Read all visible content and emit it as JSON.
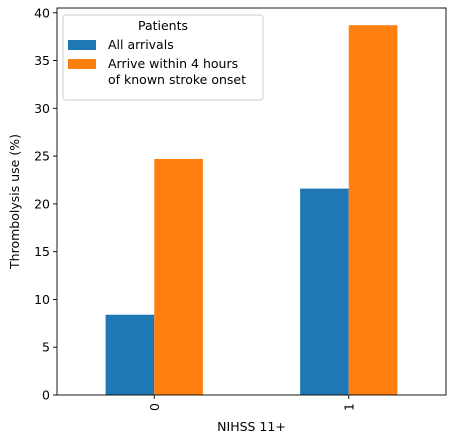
{
  "chart_data": {
    "type": "bar",
    "categories": [
      "0",
      "1"
    ],
    "series": [
      {
        "name": "All arrivals",
        "values": [
          8.4,
          21.6
        ],
        "color": "#1f77b4"
      },
      {
        "name": "Arrive within 4 hours\nof known stroke onset",
        "values": [
          24.7,
          38.7
        ],
        "color": "#ff7f0e"
      }
    ],
    "xlabel": "NIHSS 11+",
    "ylabel": "Thrombolysis use (%)",
    "ylim": [
      0,
      40.5
    ],
    "yticks": [
      0,
      5,
      10,
      15,
      20,
      25,
      30,
      35,
      40
    ],
    "legend": {
      "title": "Patients",
      "position": "top-left"
    },
    "grid": false
  }
}
